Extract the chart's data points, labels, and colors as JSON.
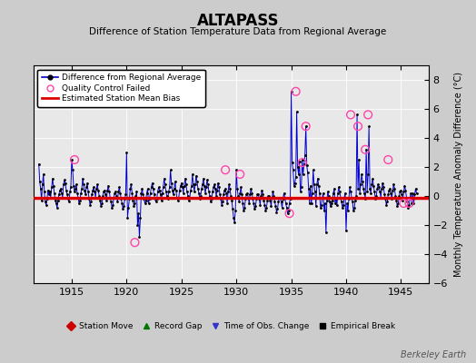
{
  "title": "ALTAPASS",
  "subtitle": "Difference of Station Temperature Data from Regional Average",
  "ylabel": "Monthly Temperature Anomaly Difference (°C)",
  "xlim": [
    1911.5,
    1947.5
  ],
  "ylim": [
    -6,
    9
  ],
  "yticks": [
    -6,
    -4,
    -2,
    0,
    2,
    4,
    6,
    8
  ],
  "xticks": [
    1915,
    1920,
    1925,
    1930,
    1935,
    1940,
    1945
  ],
  "bias_value": -0.1,
  "fig_bg_color": "#cccccc",
  "plot_bg_color": "#e8e8e8",
  "line_color": "#0000cc",
  "bias_color": "#dd0000",
  "qc_color": "#ff44aa",
  "watermark": "Berkeley Earth",
  "data_x": [
    1912.0,
    1912.083,
    1912.167,
    1912.25,
    1912.333,
    1912.417,
    1912.5,
    1912.583,
    1912.667,
    1912.75,
    1912.833,
    1912.917,
    1913.0,
    1913.083,
    1913.167,
    1913.25,
    1913.333,
    1913.417,
    1913.5,
    1913.583,
    1913.667,
    1913.75,
    1913.833,
    1913.917,
    1914.0,
    1914.083,
    1914.167,
    1914.25,
    1914.333,
    1914.417,
    1914.5,
    1914.583,
    1914.667,
    1914.75,
    1914.833,
    1914.917,
    1915.0,
    1915.083,
    1915.167,
    1915.25,
    1915.333,
    1915.417,
    1915.5,
    1915.583,
    1915.667,
    1915.75,
    1915.833,
    1915.917,
    1916.0,
    1916.083,
    1916.167,
    1916.25,
    1916.333,
    1916.417,
    1916.5,
    1916.583,
    1916.667,
    1916.75,
    1916.833,
    1916.917,
    1917.0,
    1917.083,
    1917.167,
    1917.25,
    1917.333,
    1917.417,
    1917.5,
    1917.583,
    1917.667,
    1917.75,
    1917.833,
    1917.917,
    1918.0,
    1918.083,
    1918.167,
    1918.25,
    1918.333,
    1918.417,
    1918.5,
    1918.583,
    1918.667,
    1918.75,
    1918.833,
    1918.917,
    1919.0,
    1919.083,
    1919.167,
    1919.25,
    1919.333,
    1919.417,
    1919.5,
    1919.583,
    1919.667,
    1919.75,
    1919.833,
    1919.917,
    1920.0,
    1920.083,
    1920.167,
    1920.25,
    1920.333,
    1920.417,
    1920.5,
    1920.583,
    1920.667,
    1920.75,
    1920.833,
    1920.917,
    1921.0,
    1921.083,
    1921.167,
    1921.25,
    1921.333,
    1921.417,
    1921.5,
    1921.583,
    1921.667,
    1921.75,
    1921.833,
    1921.917,
    1922.0,
    1922.083,
    1922.167,
    1922.25,
    1922.333,
    1922.417,
    1922.5,
    1922.583,
    1922.667,
    1922.75,
    1922.833,
    1922.917,
    1923.0,
    1923.083,
    1923.167,
    1923.25,
    1923.333,
    1923.417,
    1923.5,
    1923.583,
    1923.667,
    1923.75,
    1923.833,
    1923.917,
    1924.0,
    1924.083,
    1924.167,
    1924.25,
    1924.333,
    1924.417,
    1924.5,
    1924.583,
    1924.667,
    1924.75,
    1924.833,
    1924.917,
    1925.0,
    1925.083,
    1925.167,
    1925.25,
    1925.333,
    1925.417,
    1925.5,
    1925.583,
    1925.667,
    1925.75,
    1925.833,
    1925.917,
    1926.0,
    1926.083,
    1926.167,
    1926.25,
    1926.333,
    1926.417,
    1926.5,
    1926.583,
    1926.667,
    1926.75,
    1926.833,
    1926.917,
    1927.0,
    1927.083,
    1927.167,
    1927.25,
    1927.333,
    1927.417,
    1927.5,
    1927.583,
    1927.667,
    1927.75,
    1927.833,
    1927.917,
    1928.0,
    1928.083,
    1928.167,
    1928.25,
    1928.333,
    1928.417,
    1928.5,
    1928.583,
    1928.667,
    1928.75,
    1928.833,
    1928.917,
    1929.0,
    1929.083,
    1929.167,
    1929.25,
    1929.333,
    1929.417,
    1929.5,
    1929.583,
    1929.667,
    1929.75,
    1929.833,
    1929.917,
    1930.0,
    1930.083,
    1930.167,
    1930.25,
    1930.333,
    1930.417,
    1930.5,
    1930.583,
    1930.667,
    1930.75,
    1930.833,
    1930.917,
    1931.0,
    1931.083,
    1931.167,
    1931.25,
    1931.333,
    1931.417,
    1931.5,
    1931.583,
    1931.667,
    1931.75,
    1931.833,
    1931.917,
    1932.0,
    1932.083,
    1932.167,
    1932.25,
    1932.333,
    1932.417,
    1932.5,
    1932.583,
    1932.667,
    1932.75,
    1932.833,
    1932.917,
    1933.0,
    1933.083,
    1933.167,
    1933.25,
    1933.333,
    1933.417,
    1933.5,
    1933.583,
    1933.667,
    1933.75,
    1933.833,
    1933.917,
    1934.0,
    1934.083,
    1934.167,
    1934.25,
    1934.333,
    1934.417,
    1934.5,
    1934.583,
    1934.667,
    1934.75,
    1934.833,
    1934.917,
    1935.0,
    1935.083,
    1935.167,
    1935.25,
    1935.333,
    1935.417,
    1935.5,
    1935.583,
    1935.667,
    1935.75,
    1935.833,
    1935.917,
    1936.0,
    1936.083,
    1936.167,
    1936.25,
    1936.333,
    1936.417,
    1936.5,
    1936.583,
    1936.667,
    1936.75,
    1936.833,
    1936.917,
    1937.0,
    1937.083,
    1937.167,
    1937.25,
    1937.333,
    1937.417,
    1937.5,
    1937.583,
    1937.667,
    1937.75,
    1937.833,
    1937.917,
    1938.0,
    1938.083,
    1938.167,
    1938.25,
    1938.333,
    1938.417,
    1938.5,
    1938.583,
    1938.667,
    1938.75,
    1938.833,
    1938.917,
    1939.0,
    1939.083,
    1939.167,
    1939.25,
    1939.333,
    1939.417,
    1939.5,
    1939.583,
    1939.667,
    1939.75,
    1939.833,
    1939.917,
    1940.0,
    1940.083,
    1940.167,
    1940.25,
    1940.333,
    1940.417,
    1940.5,
    1940.583,
    1940.667,
    1940.75,
    1940.833,
    1940.917,
    1941.0,
    1941.083,
    1941.167,
    1941.25,
    1941.333,
    1941.417,
    1941.5,
    1941.583,
    1941.667,
    1941.75,
    1941.833,
    1941.917,
    1942.0,
    1942.083,
    1942.167,
    1942.25,
    1942.333,
    1942.417,
    1942.5,
    1942.583,
    1942.667,
    1942.75,
    1942.833,
    1942.917,
    1943.0,
    1943.083,
    1943.167,
    1943.25,
    1943.333,
    1943.417,
    1943.5,
    1943.583,
    1943.667,
    1943.75,
    1943.833,
    1943.917,
    1944.0,
    1944.083,
    1944.167,
    1944.25,
    1944.333,
    1944.417,
    1944.5,
    1944.583,
    1944.667,
    1944.75,
    1944.833,
    1944.917,
    1945.0,
    1945.083,
    1945.167,
    1945.25,
    1945.333,
    1945.417,
    1945.5,
    1945.583,
    1945.667,
    1945.75,
    1945.833,
    1945.917,
    1946.0,
    1946.083,
    1946.167,
    1946.25,
    1946.333,
    1946.417
  ],
  "data_y": [
    2.2,
    1.0,
    0.5,
    -0.3,
    0.8,
    1.5,
    0.3,
    -0.4,
    -0.6,
    -0.2,
    0.4,
    0.1,
    0.3,
    -0.1,
    0.6,
    1.2,
    0.7,
    0.2,
    -0.3,
    -0.5,
    -0.8,
    -0.3,
    0.1,
    0.4,
    0.5,
    0.2,
    -0.1,
    0.8,
    1.1,
    0.9,
    0.4,
    0.1,
    -0.2,
    -0.4,
    0.3,
    0.6,
    2.5,
    1.8,
    0.7,
    0.3,
    0.5,
    0.8,
    0.2,
    -0.1,
    -0.5,
    -0.3,
    0.2,
    0.5,
    1.2,
    0.8,
    0.4,
    0.1,
    0.6,
    0.9,
    0.3,
    -0.2,
    -0.6,
    -0.4,
    0.1,
    0.4,
    0.6,
    0.3,
    -0.1,
    0.5,
    0.8,
    0.4,
    0.0,
    -0.3,
    -0.7,
    -0.5,
    0.0,
    0.3,
    0.4,
    0.1,
    -0.3,
    0.4,
    0.7,
    0.3,
    -0.1,
    -0.4,
    -0.8,
    -0.6,
    -0.1,
    0.2,
    0.3,
    0.0,
    -0.4,
    0.3,
    0.6,
    0.2,
    -0.2,
    -0.5,
    -0.9,
    -0.7,
    -0.2,
    0.1,
    3.0,
    -1.5,
    -0.8,
    -0.2,
    0.5,
    0.8,
    0.2,
    -0.3,
    -0.7,
    -0.5,
    0.0,
    0.3,
    -2.0,
    -1.2,
    -2.8,
    -1.5,
    0.2,
    0.5,
    0.1,
    -0.2,
    -0.5,
    -0.3,
    0.2,
    0.5,
    -0.5,
    -0.2,
    0.2,
    0.6,
    0.9,
    0.5,
    0.1,
    -0.2,
    -0.4,
    -0.2,
    0.3,
    0.6,
    0.4,
    0.1,
    -0.3,
    0.2,
    0.6,
    1.2,
    0.8,
    0.3,
    0.0,
    -0.2,
    0.3,
    0.6,
    1.8,
    0.9,
    0.4,
    0.1,
    0.5,
    1.0,
    0.4,
    -0.1,
    -0.3,
    -0.1,
    0.4,
    0.7,
    0.9,
    0.6,
    0.2,
    0.7,
    1.2,
    0.8,
    0.3,
    0.0,
    -0.3,
    -0.1,
    0.4,
    0.7,
    1.5,
    0.8,
    0.3,
    0.8,
    1.4,
    1.0,
    0.5,
    0.2,
    -0.2,
    0.0,
    0.5,
    0.8,
    1.2,
    0.7,
    0.2,
    0.6,
    1.1,
    0.8,
    0.3,
    0.0,
    -0.4,
    -0.2,
    0.3,
    0.6,
    0.8,
    0.5,
    0.0,
    0.4,
    0.9,
    0.6,
    0.1,
    -0.2,
    -0.6,
    -0.4,
    0.1,
    0.4,
    0.5,
    0.2,
    -0.5,
    0.3,
    0.8,
    0.5,
    0.0,
    -0.3,
    -0.9,
    -1.5,
    -1.8,
    -1.0,
    1.8,
    0.5,
    0.0,
    -0.4,
    0.2,
    0.6,
    0.1,
    -0.5,
    -1.0,
    -0.8,
    -0.2,
    0.1,
    0.2,
    -0.1,
    -0.5,
    0.1,
    0.5,
    0.2,
    -0.2,
    -0.5,
    -0.9,
    -0.7,
    -0.2,
    0.1,
    0.1,
    -0.2,
    -0.6,
    0.0,
    0.4,
    0.1,
    -0.3,
    -0.6,
    -1.0,
    -0.8,
    -0.3,
    0.0,
    0.0,
    -0.3,
    -0.7,
    -0.1,
    0.3,
    0.0,
    -0.4,
    -0.7,
    -1.1,
    -0.9,
    -0.4,
    -0.1,
    -0.1,
    -0.4,
    -0.8,
    -0.2,
    0.2,
    -0.1,
    -0.5,
    -0.8,
    -1.2,
    -1.0,
    -0.5,
    -0.2,
    7.2,
    2.3,
    1.8,
    0.7,
    0.9,
    1.3,
    5.8,
    2.0,
    1.5,
    2.4,
    0.3,
    0.6,
    2.5,
    1.5,
    2.2,
    2.8,
    4.8,
    2.1,
    1.6,
    0.5,
    -0.5,
    0.7,
    -0.5,
    0.2,
    1.8,
    0.8,
    0.3,
    -0.7,
    0.8,
    1.2,
    0.7,
    0.2,
    -0.8,
    -0.6,
    -0.1,
    0.2,
    -1.0,
    -0.5,
    -2.5,
    -0.3,
    0.3,
    0.0,
    -0.4,
    -0.7,
    -0.5,
    -0.3,
    0.2,
    0.5,
    -0.5,
    -0.2,
    -0.6,
    0.2,
    0.6,
    0.3,
    -0.1,
    -0.4,
    -0.8,
    -0.6,
    -0.1,
    0.2,
    -2.4,
    -0.5,
    -1.0,
    -0.2,
    0.6,
    0.3,
    -0.1,
    -0.4,
    -1.0,
    -0.8,
    -0.3,
    0.0,
    5.6,
    0.5,
    2.5,
    0.2,
    0.8,
    1.5,
    1.0,
    0.5,
    0.2,
    -0.2,
    3.2,
    0.3,
    1.5,
    4.8,
    0.5,
    0.2,
    0.8,
    1.2,
    0.7,
    0.3,
    -0.2,
    0.0,
    0.5,
    0.8,
    0.6,
    0.3,
    -0.1,
    0.5,
    0.9,
    0.6,
    0.1,
    -0.2,
    -0.6,
    -0.4,
    0.1,
    0.4,
    0.5,
    0.2,
    -0.2,
    0.4,
    0.8,
    0.5,
    0.0,
    -0.3,
    -0.7,
    -0.5,
    0.0,
    0.3,
    0.4,
    0.1,
    -0.3,
    0.3,
    0.7,
    0.4,
    -0.1,
    -0.4,
    -0.8,
    -0.6,
    -0.1,
    0.2,
    -0.5,
    0.2,
    -0.5,
    0.1,
    0.5,
    0.2
  ],
  "qc_x": [
    1915.25,
    1920.75,
    1929.0,
    1930.33,
    1934.83,
    1935.417,
    1936.0,
    1936.333,
    1940.417,
    1941.083,
    1941.75,
    1942.0,
    1943.833,
    1945.25,
    1945.75
  ],
  "qc_y": [
    2.5,
    -3.2,
    1.8,
    1.5,
    -1.2,
    7.2,
    2.3,
    4.8,
    5.6,
    4.8,
    3.2,
    5.6,
    2.5,
    -0.5,
    -0.5
  ]
}
